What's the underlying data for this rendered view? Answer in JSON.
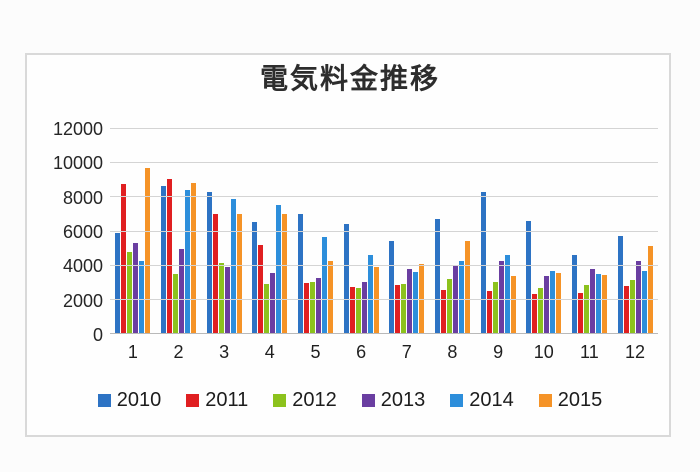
{
  "title": "電気料金推移",
  "chart_data": {
    "type": "bar",
    "title": "電気料金推移",
    "xlabel": "",
    "ylabel": "",
    "categories": [
      "1",
      "2",
      "3",
      "4",
      "5",
      "6",
      "7",
      "8",
      "9",
      "10",
      "11",
      "12"
    ],
    "series": [
      {
        "name": "2010",
        "color": "#2d73c4",
        "values": [
          5900,
          8650,
          8300,
          6550,
          7000,
          6450,
          5450,
          6750,
          8300,
          6600,
          4600,
          5750
        ]
      },
      {
        "name": "2011",
        "color": "#e01f21",
        "values": [
          8800,
          9050,
          7000,
          5200,
          3000,
          2750,
          2850,
          2600,
          2500,
          2350,
          2400,
          2800
        ]
      },
      {
        "name": "2012",
        "color": "#8cc21d",
        "values": [
          4800,
          3500,
          4150,
          2900,
          3050,
          2700,
          2900,
          3200,
          3050,
          2700,
          2850,
          3150
        ]
      },
      {
        "name": "2013",
        "color": "#6a3ea1",
        "values": [
          5300,
          5000,
          3950,
          3550,
          3300,
          3050,
          3800,
          4000,
          4250,
          3400,
          3800,
          4250
        ]
      },
      {
        "name": "2014",
        "color": "#2d8edb",
        "values": [
          4300,
          8450,
          7900,
          7550,
          5650,
          4600,
          3650,
          4250,
          4650,
          3700,
          3500,
          3700
        ]
      },
      {
        "name": "2015",
        "color": "#f59327",
        "values": [
          9700,
          8850,
          7000,
          7050,
          4300,
          3950,
          4100,
          5450,
          3400,
          3600,
          3450,
          5150
        ]
      }
    ],
    "ylim": [
      0,
      12000
    ],
    "ytick_interval": 2000,
    "yticks": [
      "12000",
      "10000",
      "8000",
      "6000",
      "4000",
      "2000",
      "0"
    ],
    "grid": true,
    "legend_position": "bottom"
  }
}
